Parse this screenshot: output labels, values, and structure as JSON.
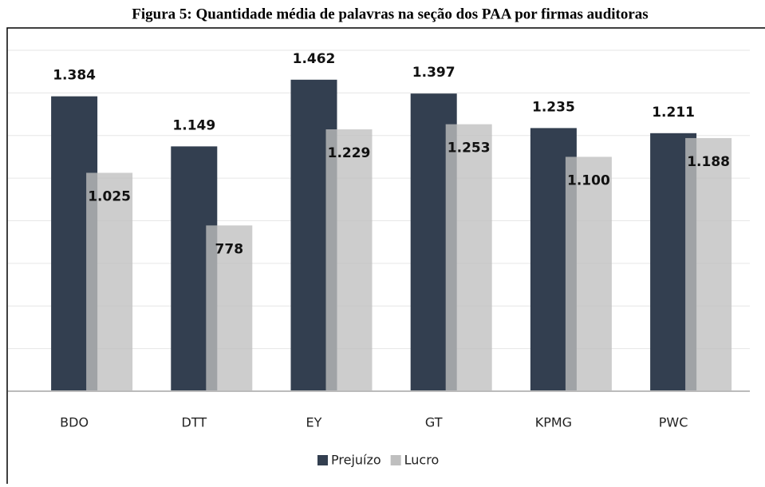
{
  "chart_data": {
    "type": "bar",
    "title": "Figura 5: Quantidade média de palavras na seção dos PAA por firmas auditoras",
    "categories": [
      "BDO",
      "DTT",
      "EY",
      "GT",
      "KPMG",
      "PWC"
    ],
    "series": [
      {
        "name": "Prejuízo",
        "color": "#333f50",
        "values": [
          1384,
          1149,
          1462,
          1397,
          1235,
          1211
        ],
        "value_labels": [
          "1.384",
          "1.149",
          "1.462",
          "1.397",
          "1.235",
          "1.211"
        ]
      },
      {
        "name": "Lucro",
        "color": "#bfbfbf",
        "values": [
          1025,
          778,
          1229,
          1253,
          1100,
          1188
        ],
        "value_labels": [
          "1.025",
          "778",
          "1.229",
          "1.253",
          "1.100",
          "1.188"
        ]
      }
    ],
    "ylim": [
      0,
      1600
    ],
    "yticks": [
      0,
      200,
      400,
      600,
      800,
      1000,
      1200,
      1400,
      1600
    ],
    "grid": true,
    "legend": "bottom"
  }
}
